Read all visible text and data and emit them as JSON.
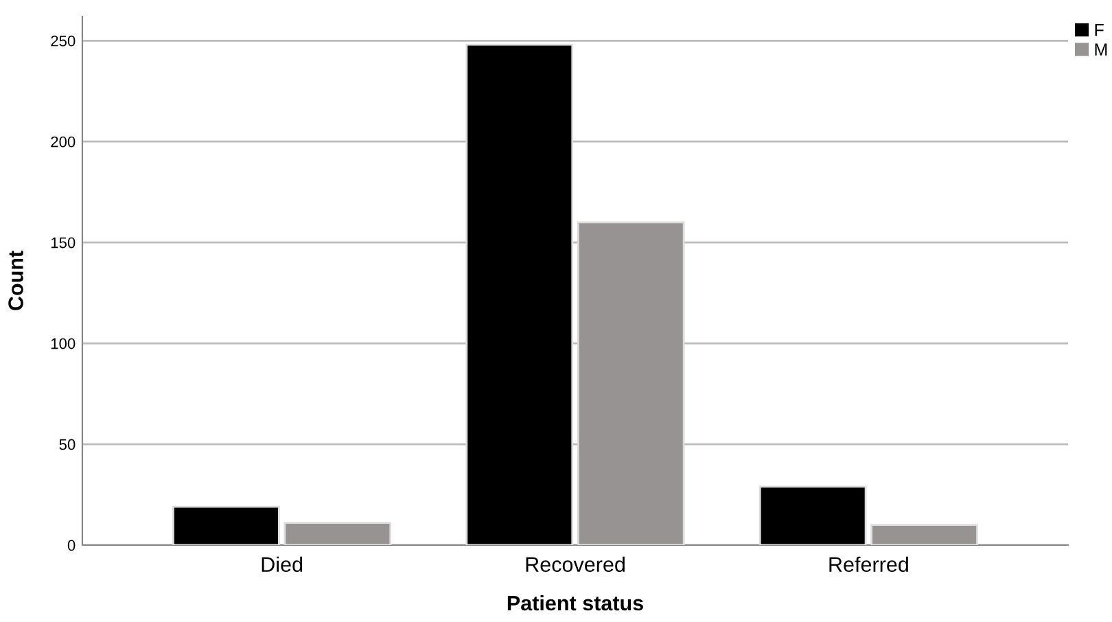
{
  "chart_data": {
    "type": "bar",
    "xlabel": "Patient status",
    "ylabel": "Count",
    "categories": [
      "Died",
      "Recovered",
      "Referred"
    ],
    "series": [
      {
        "name": "F",
        "color": "#000000",
        "values": [
          19,
          248,
          29
        ]
      },
      {
        "name": "M",
        "color": "#979392",
        "values": [
          11,
          160,
          10
        ]
      }
    ],
    "ylim": [
      0,
      262
    ],
    "yticks": [
      0,
      50,
      100,
      150,
      200,
      250
    ],
    "grid": "y",
    "legend": "top right"
  }
}
